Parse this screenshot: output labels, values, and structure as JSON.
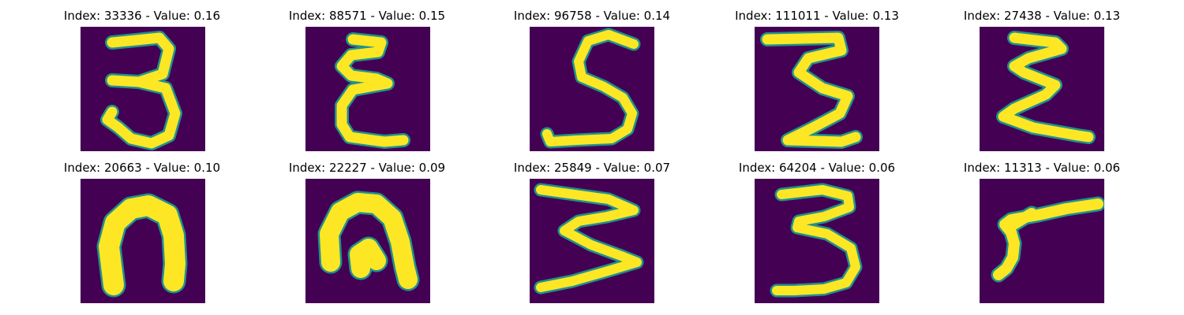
{
  "colors": {
    "background": "#440154",
    "stroke_edge": "#21918c",
    "stroke_core": "#fde725"
  },
  "chart_data": {
    "type": "image-grid",
    "colormap": "viridis",
    "rows": 2,
    "cols": 5,
    "panels": [
      {
        "title": "Index: 33336 - Value: 0.16",
        "index": 33336,
        "value": 0.16,
        "glyph": "three"
      },
      {
        "title": "Index: 88571 - Value: 0.15",
        "index": 88571,
        "value": 0.15,
        "glyph": "epsilon"
      },
      {
        "title": "Index: 96758 - Value: 0.14",
        "index": 96758,
        "value": 0.14,
        "glyph": "five"
      },
      {
        "title": "Index: 111011 - Value: 0.13",
        "index": 111011,
        "value": 0.13,
        "glyph": "zigzag"
      },
      {
        "title": "Index: 27438 - Value: 0.13",
        "index": 27438,
        "value": 0.13,
        "glyph": "epsilon2"
      },
      {
        "title": "Index: 20663 - Value: 0.10",
        "index": 20663,
        "value": 0.1,
        "glyph": "arch"
      },
      {
        "title": "Index: 22227 - Value: 0.09",
        "index": 22227,
        "value": 0.09,
        "glyph": "arch2"
      },
      {
        "title": "Index: 25849 - Value: 0.07",
        "index": 25849,
        "value": 0.07,
        "glyph": "sideways-m"
      },
      {
        "title": "Index: 64204 - Value: 0.06",
        "index": 64204,
        "value": 0.06,
        "glyph": "three2"
      },
      {
        "title": "Index: 11313 - Value: 0.06",
        "index": 11313,
        "value": 0.06,
        "glyph": "seven"
      }
    ]
  }
}
